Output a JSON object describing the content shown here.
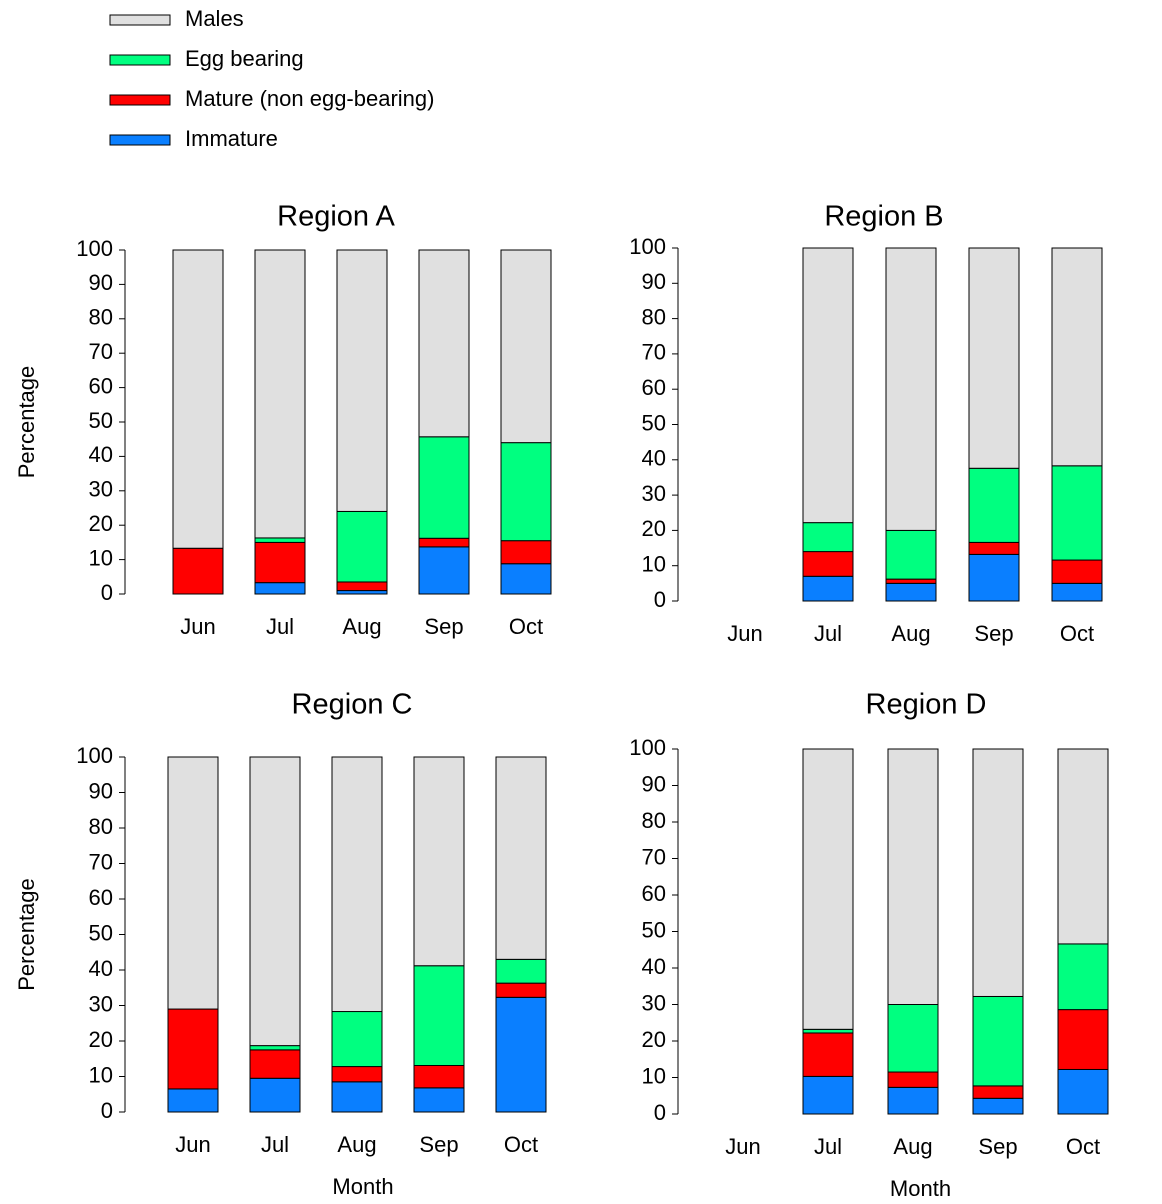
{
  "chart_data": [
    {
      "type": "stacked_bar",
      "title": "Region A",
      "y_label": "Percentage",
      "categories": [
        "Jun",
        "Jul",
        "Aug",
        "Sep",
        "Oct"
      ],
      "ylim": [
        0,
        100
      ],
      "yticks": [
        0,
        10,
        20,
        30,
        40,
        50,
        60,
        70,
        80,
        90,
        100
      ],
      "series": [
        {
          "name": "Immature",
          "color": "#0a7fff",
          "values": [
            0,
            3.3,
            1,
            13.7,
            8.8
          ]
        },
        {
          "name": "Mature (non egg-bearing)",
          "color": "#ff0000",
          "values": [
            13.3,
            11.7,
            2.5,
            2.5,
            6.7
          ]
        },
        {
          "name": "Egg bearing",
          "color": "#00ff80",
          "values": [
            0,
            1.3,
            20.5,
            29.5,
            28.5
          ]
        },
        {
          "name": "Males",
          "color": "#e0e0e0",
          "values": [
            86.7,
            83.7,
            76,
            54.3,
            56
          ]
        }
      ]
    },
    {
      "type": "stacked_bar",
      "title": "Region B",
      "categories": [
        "Jun",
        "Jul",
        "Aug",
        "Sep",
        "Oct"
      ],
      "ylim": [
        0,
        100
      ],
      "yticks": [
        0,
        10,
        20,
        30,
        40,
        50,
        60,
        70,
        80,
        90,
        100
      ],
      "series": [
        {
          "color": "#0a7fff",
          "values": [
            null,
            7,
            5,
            13.2,
            5
          ]
        },
        {
          "color": "#ff0000",
          "values": [
            null,
            7,
            1.2,
            3.4,
            6.6
          ]
        },
        {
          "color": "#00ff80",
          "values": [
            null,
            8.2,
            13.8,
            21,
            26.7
          ]
        },
        {
          "color": "#e0e0e0",
          "values": [
            null,
            77.8,
            80,
            62.4,
            61.7
          ]
        }
      ]
    },
    {
      "type": "stacked_bar",
      "title": "Region C",
      "y_label": "Percentage",
      "x_label": "Month",
      "categories": [
        "Jun",
        "Jul",
        "Aug",
        "Sep",
        "Oct"
      ],
      "ylim": [
        0,
        100
      ],
      "yticks": [
        0,
        10,
        20,
        30,
        40,
        50,
        60,
        70,
        80,
        90,
        100
      ],
      "series": [
        {
          "color": "#0a7fff",
          "values": [
            6.5,
            9.5,
            8.5,
            6.8,
            32.3
          ]
        },
        {
          "color": "#ff0000",
          "values": [
            22.5,
            8,
            4.3,
            6.3,
            4
          ]
        },
        {
          "color": "#00ff80",
          "values": [
            0,
            1.2,
            15.5,
            28.1,
            6.7
          ]
        },
        {
          "color": "#e0e0e0",
          "values": [
            71,
            81.3,
            71.7,
            58.8,
            57
          ]
        }
      ]
    },
    {
      "type": "stacked_bar",
      "title": "Region D",
      "x_label": "Month",
      "categories": [
        "Jun",
        "Jul",
        "Aug",
        "Sep",
        "Oct"
      ],
      "ylim": [
        0,
        100
      ],
      "yticks": [
        0,
        10,
        20,
        30,
        40,
        50,
        60,
        70,
        80,
        90,
        100
      ],
      "series": [
        {
          "color": "#0a7fff",
          "values": [
            null,
            10.3,
            7.3,
            4.3,
            12.2
          ]
        },
        {
          "color": "#ff0000",
          "values": [
            null,
            11.9,
            4.2,
            3.4,
            16.4
          ]
        },
        {
          "color": "#00ff80",
          "values": [
            null,
            1,
            18.5,
            24.5,
            18
          ]
        },
        {
          "color": "#e0e0e0",
          "values": [
            null,
            76.8,
            70,
            67.8,
            53.4
          ]
        }
      ]
    }
  ]
}
